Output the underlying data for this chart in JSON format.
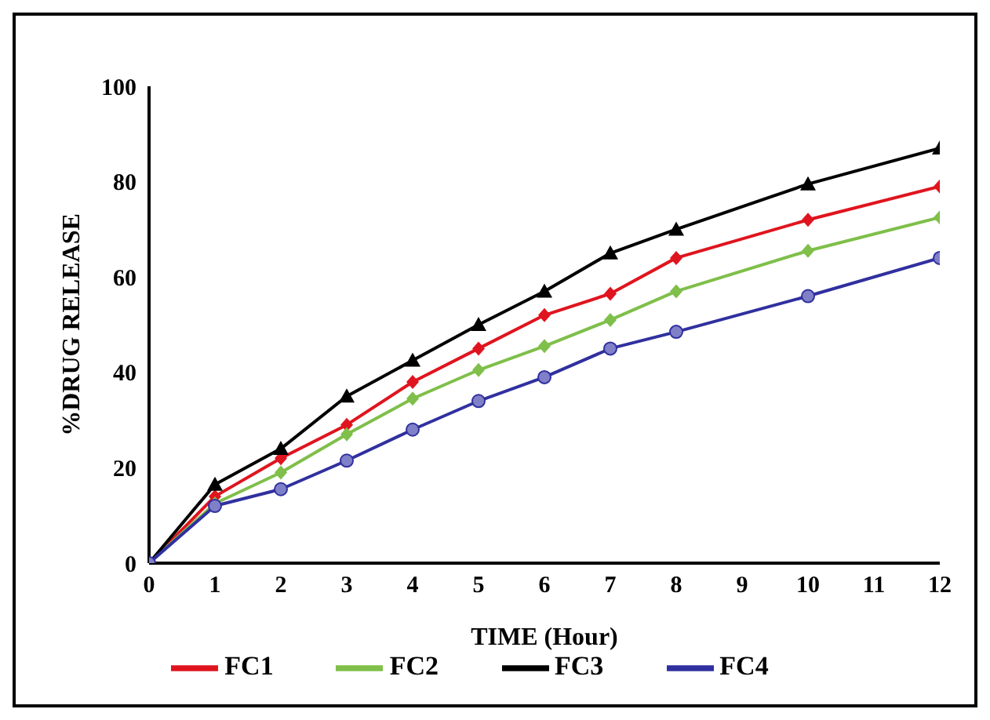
{
  "chart_data": {
    "type": "line",
    "xlabel": "TIME (Hour)",
    "ylabel": "%DRUG RELEASE",
    "x": [
      0,
      1,
      2,
      3,
      4,
      5,
      6,
      7,
      8,
      10,
      12
    ],
    "xlim": [
      0,
      12
    ],
    "xticks": [
      0,
      1,
      2,
      3,
      4,
      5,
      6,
      7,
      8,
      9,
      10,
      11,
      12
    ],
    "ylim": [
      0,
      100
    ],
    "yticks": [
      0,
      20,
      40,
      60,
      80,
      100
    ],
    "grid": false,
    "legend": "bottom",
    "line_style": "solid",
    "series": [
      {
        "name": "FC1",
        "color": "#e0141e",
        "marker": "diamond",
        "values": [
          0,
          14,
          22,
          29,
          38,
          45,
          52,
          56.5,
          64,
          72,
          79
        ]
      },
      {
        "name": "FC2",
        "color": "#7fbf4a",
        "marker": "diamond",
        "values": [
          0,
          12.5,
          19,
          27,
          34.5,
          40.5,
          45.5,
          51,
          57,
          65.5,
          72.5
        ]
      },
      {
        "name": "FC3",
        "color": "#000000",
        "marker": "triangle",
        "values": [
          0,
          16.5,
          24,
          35,
          42.5,
          50,
          57,
          65,
          70,
          79.5,
          87
        ]
      },
      {
        "name": "FC4",
        "color": "#3030a0",
        "marker": "circle",
        "values": [
          0,
          12,
          15.5,
          21.5,
          28,
          34,
          39,
          45,
          48.5,
          56,
          64
        ]
      }
    ]
  }
}
